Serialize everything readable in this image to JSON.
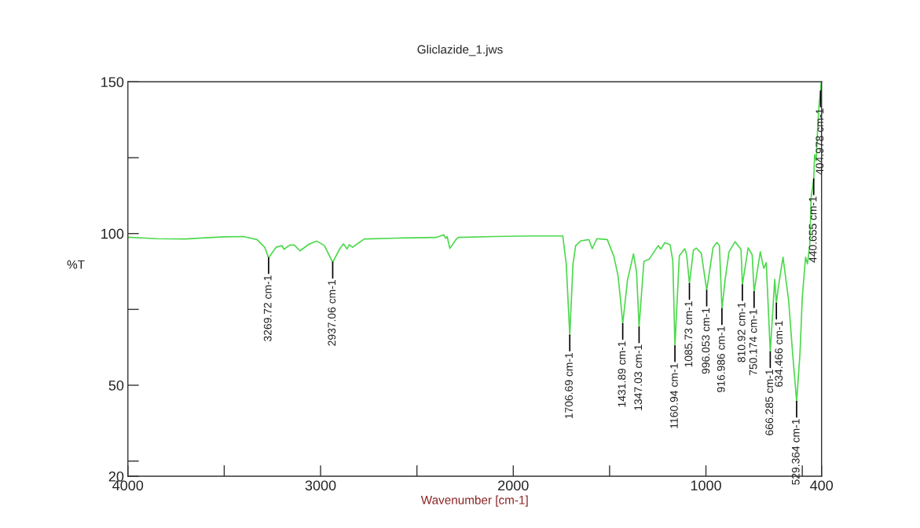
{
  "chart_data": {
    "type": "line",
    "title": "Gliclazide_1.jws",
    "xlabel": "Wavenumber [cm-1]",
    "ylabel": "%T",
    "xlim": [
      4000,
      400
    ],
    "ylim": [
      20,
      150
    ],
    "xticks": [
      4000,
      {
        "value": 3500,
        "label": null
      },
      3000,
      {
        "value": 2500,
        "label": null
      },
      2000,
      {
        "value": 1500,
        "label": null
      },
      1000,
      {
        "value": 500,
        "label": null
      },
      400
    ],
    "yticks": [
      20,
      {
        "value": 25,
        "label": null
      },
      50,
      {
        "value": 75,
        "label": null
      },
      100,
      {
        "value": 125,
        "label": null
      },
      150
    ],
    "grid": false,
    "legend": false,
    "marker": "none",
    "line_style": "solid",
    "series": [
      {
        "color": "#4cd94c",
        "x": [
          4000,
          3850,
          3700,
          3600,
          3500,
          3400,
          3330,
          3290,
          3269.72,
          3230,
          3200,
          3190,
          3160,
          3136,
          3107,
          3060,
          3019,
          2980,
          2937.06,
          2900,
          2881,
          2863,
          2851,
          2834,
          2800,
          2773,
          2600,
          2400,
          2361,
          2350,
          2343,
          2329,
          2300,
          2287,
          2100,
          1900,
          1743,
          1725,
          1706.69,
          1690,
          1676,
          1649,
          1607,
          1590,
          1566,
          1512,
          1478,
          1457,
          1444,
          1431.89,
          1407,
          1376,
          1360,
          1347.03,
          1322,
          1294,
          1267,
          1248,
          1234,
          1213,
          1186,
          1172,
          1160.94,
          1138,
          1110,
          1100,
          1085.73,
          1065,
          1050,
          1024,
          996.053,
          963,
          943,
          930,
          916.986,
          900,
          880,
          849,
          818,
          810.92,
          781,
          760,
          750.174,
          718,
          700,
          687,
          666.285,
          643,
          634.466,
          625,
          600,
          571,
          550,
          529.364,
          512,
          500,
          483,
          473,
          461,
          454,
          440.655,
          436,
          428,
          420,
          413,
          404.978,
          402
        ],
        "values": [
          98.8,
          98.3,
          98.2,
          98.6,
          98.9,
          99.0,
          98.0,
          95.5,
          92.0,
          95.5,
          96.0,
          94.8,
          96.2,
          96.2,
          94.3,
          96.5,
          97.5,
          96.0,
          90.5,
          95.0,
          96.6,
          94.9,
          96.3,
          95.5,
          97.0,
          98.2,
          98.5,
          98.7,
          99.6,
          98.4,
          99.0,
          95.1,
          97.8,
          98.7,
          99.0,
          99.2,
          99.2,
          90.0,
          66.5,
          90.0,
          96.0,
          97.6,
          98.0,
          95.0,
          98.3,
          98.0,
          92.5,
          86.4,
          78.7,
          70.3,
          84.7,
          93.3,
          87.3,
          69.2,
          90.8,
          91.6,
          94.2,
          96.0,
          94.9,
          97.0,
          96.3,
          91.0,
          63.0,
          92.7,
          95.0,
          93.0,
          83.5,
          94.5,
          95.2,
          93.5,
          81.3,
          95.4,
          97.1,
          96.0,
          75.2,
          85.0,
          94.0,
          97.3,
          94.8,
          83.1,
          95.3,
          93.0,
          80.8,
          94.0,
          88.5,
          90.4,
          61.0,
          84.9,
          77.0,
          82.0,
          92.2,
          78.0,
          60.4,
          44.7,
          60.4,
          79.0,
          92.2,
          90.0,
          96.4,
          112.0,
          118.0,
          126.0,
          124.0,
          135.0,
          142.6,
          147.0,
          150.0
        ]
      }
    ],
    "annotations": [
      {
        "text": "3269.72 cm-1",
        "x": 3269.72,
        "y": 92.0
      },
      {
        "text": "2937.06 cm-1",
        "x": 2937.06,
        "y": 90.5
      },
      {
        "text": "1706.69 cm-1",
        "x": 1706.69,
        "y": 66.5
      },
      {
        "text": "1431.89 cm-1",
        "x": 1431.89,
        "y": 70.3
      },
      {
        "text": "1347.03 cm-1",
        "x": 1347.03,
        "y": 69.2
      },
      {
        "text": "1160.94 cm-1",
        "x": 1160.94,
        "y": 63.0
      },
      {
        "text": "1085.73 cm-1",
        "x": 1085.73,
        "y": 83.5
      },
      {
        "text": "996.053 cm-1",
        "x": 996.053,
        "y": 81.3
      },
      {
        "text": "916.986 cm-1",
        "x": 916.986,
        "y": 75.2
      },
      {
        "text": "810.92 cm-1",
        "x": 810.92,
        "y": 83.1
      },
      {
        "text": "750.174 cm-1",
        "x": 750.174,
        "y": 80.8
      },
      {
        "text": "666.285 cm-1",
        "x": 666.285,
        "y": 61.0
      },
      {
        "text": "634.466 cm-1",
        "x": 634.466,
        "y": 77.0
      },
      {
        "text": "529.364 cm-1",
        "x": 529.364,
        "y": 44.7
      },
      {
        "text": "440.655 cm-1",
        "x": 440.655,
        "y": 118.0
      },
      {
        "text": "404.978 cm-1",
        "x": 404.978,
        "y": 147.0
      }
    ]
  }
}
